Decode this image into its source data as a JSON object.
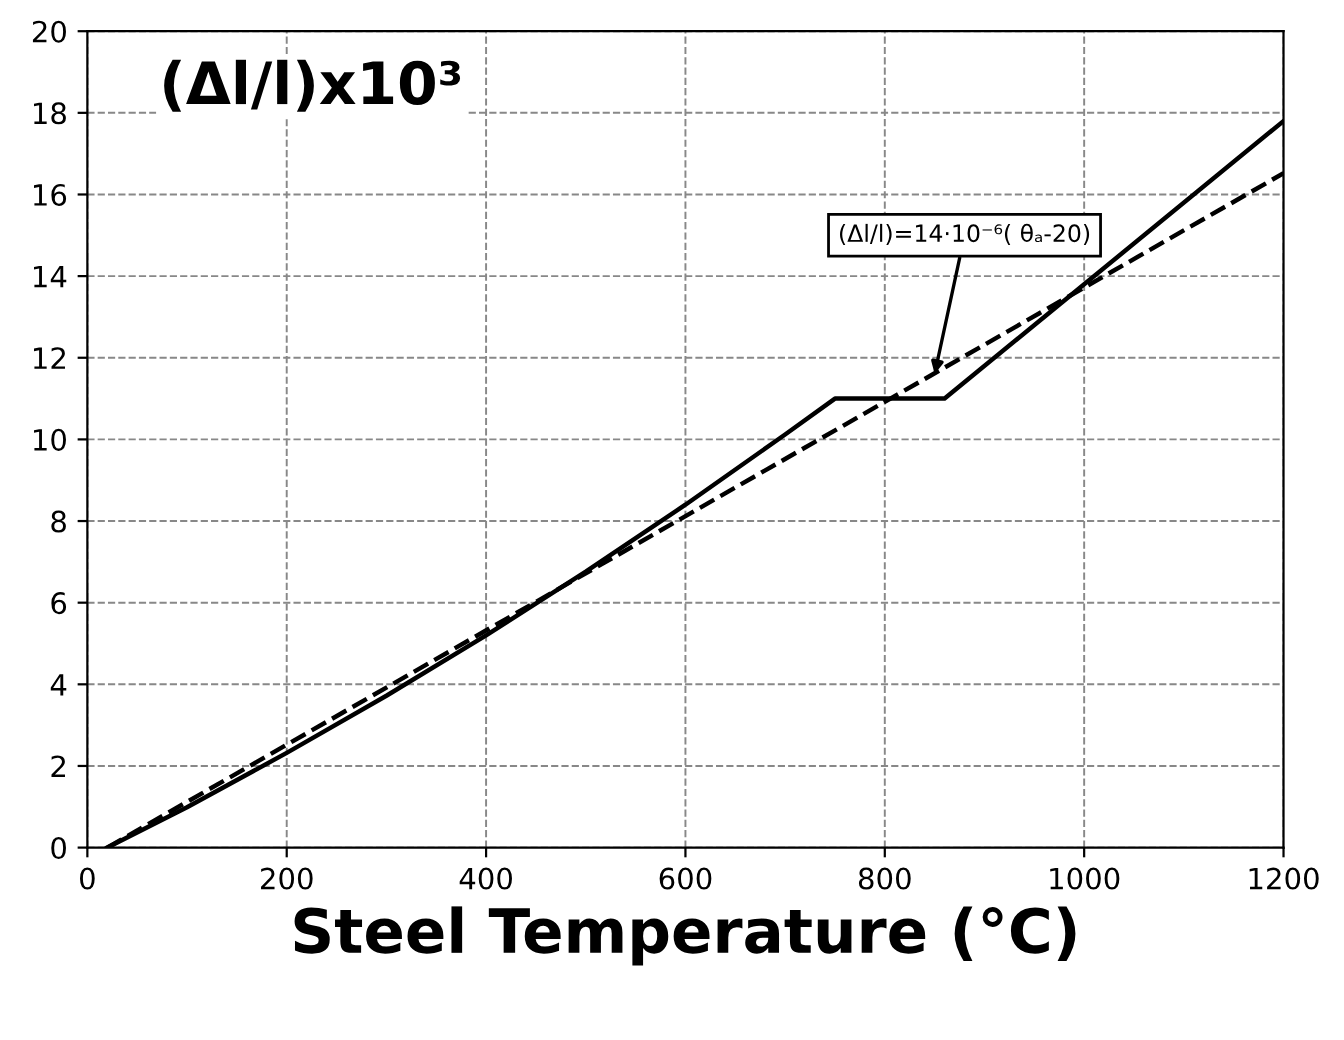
{
  "chart_data": {
    "type": "line",
    "ylabel": "(Δl/l)x10³",
    "xlabel": "Steel Temperature (°C)",
    "xlim": [
      0,
      1200
    ],
    "xticks": [
      0,
      200,
      400,
      600,
      800,
      1000,
      1200
    ],
    "ylim": [
      0,
      20
    ],
    "yticks": [
      0,
      2,
      4,
      6,
      8,
      10,
      12,
      14,
      16,
      18,
      20
    ],
    "grid": true,
    "legend": false,
    "marker": "none",
    "series": [
      {
        "color": "#000000",
        "line_style": "solid",
        "x": [
          20,
          100,
          200,
          300,
          400,
          500,
          600,
          700,
          750,
          860,
          1000,
          1200
        ],
        "values": [
          0,
          0.99,
          2.32,
          3.72,
          5.2,
          6.76,
          8.4,
          10.12,
          11.0,
          11.0,
          13.8,
          17.8
        ]
      },
      {
        "color": "#000000",
        "line_style": "dashed",
        "x": [
          20,
          1200
        ],
        "values": [
          0,
          16.52
        ]
      }
    ],
    "annotations": [
      {
        "text": "(Δl/l)=14·10⁻⁶( θₐ-20)",
        "x": 850,
        "y": 11.6
      }
    ]
  }
}
